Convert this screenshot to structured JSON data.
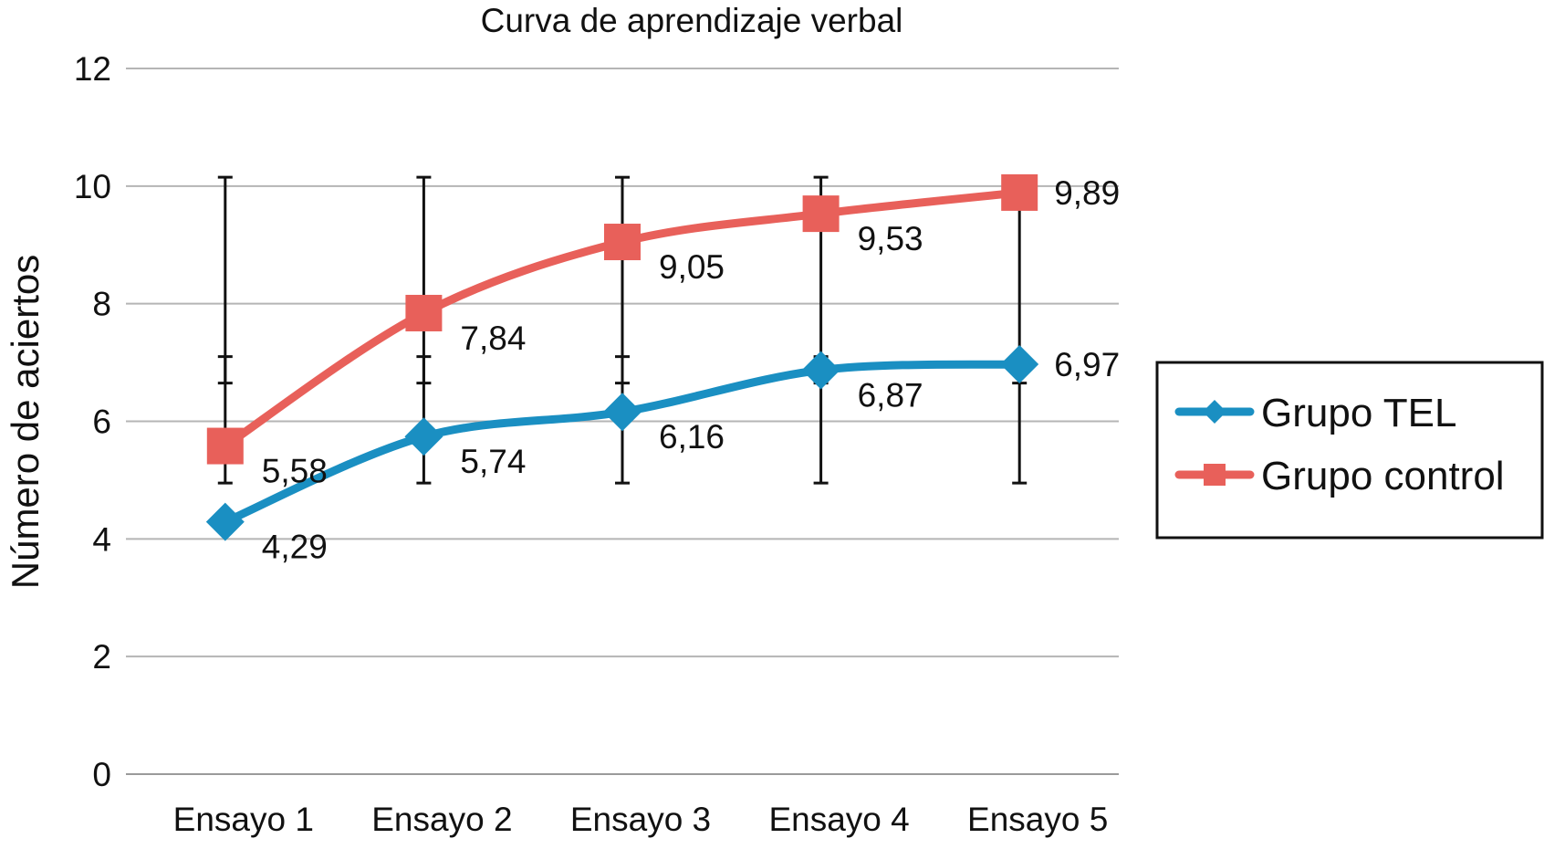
{
  "chart_data": {
    "type": "line",
    "title": "Curva de aprendizaje verbal",
    "xlabel": "",
    "ylabel": "Número de aciertos",
    "categories": [
      "Ensayo 1",
      "Ensayo 2",
      "Ensayo 3",
      "Ensayo 4",
      "Ensayo 5"
    ],
    "ylim": [
      0,
      12
    ],
    "yticks": [
      0,
      2,
      4,
      6,
      8,
      10,
      12
    ],
    "grid": true,
    "legend_position": "right",
    "series": [
      {
        "name": "Grupo TEL",
        "color": "#1a8fc2",
        "marker": "diamond",
        "values": [
          4.29,
          5.74,
          6.16,
          6.87,
          6.97
        ],
        "labels": [
          "4,29",
          "5,74",
          "6,16",
          "6,87",
          "6,97"
        ],
        "error_low": [
          4.95,
          4.95,
          4.95,
          4.95,
          4.95
        ],
        "error_high": [
          7.1,
          7.1,
          7.1,
          7.1,
          7.1
        ]
      },
      {
        "name": "Grupo control",
        "color": "#e8605a",
        "marker": "square",
        "values": [
          5.58,
          7.84,
          9.05,
          9.53,
          9.89
        ],
        "labels": [
          "5,58",
          "7,84",
          "9,05",
          "9,53",
          "9,89"
        ],
        "error_low": [
          6.65,
          6.65,
          6.65,
          6.65,
          6.65
        ],
        "error_high": [
          10.15,
          10.15,
          10.15,
          10.15,
          10.15
        ]
      }
    ]
  }
}
